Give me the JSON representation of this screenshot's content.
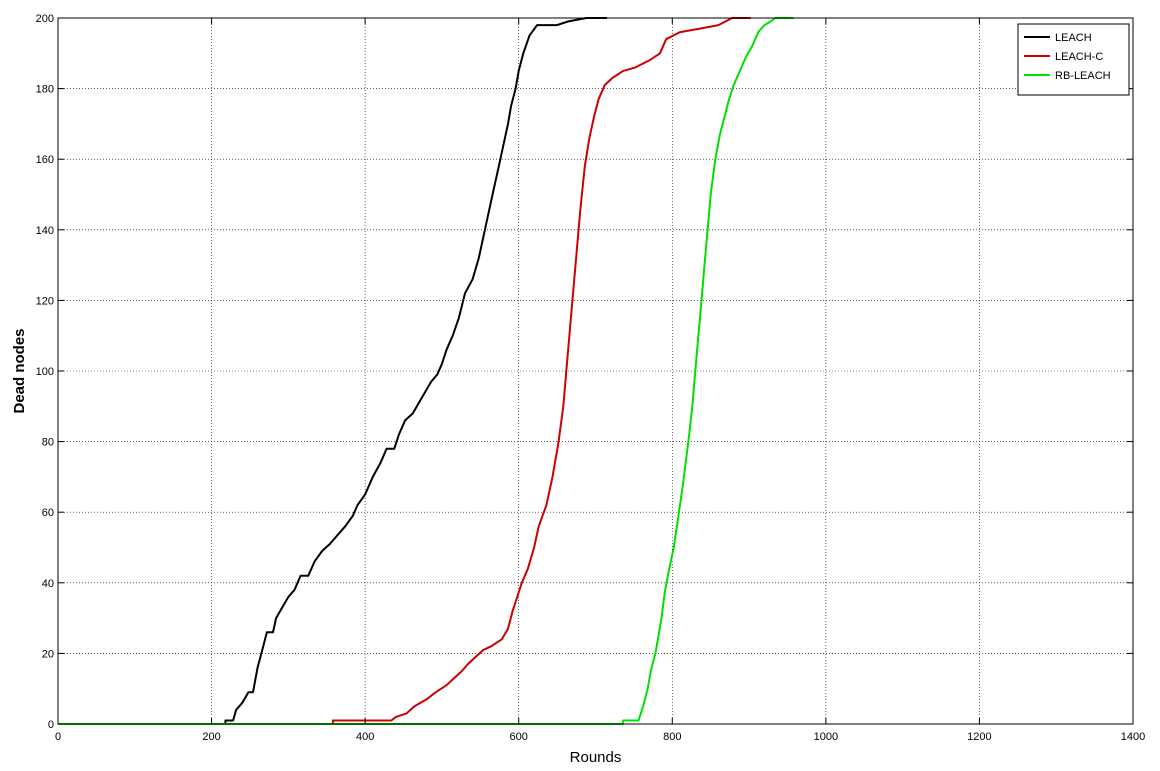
{
  "chart_data": {
    "type": "line",
    "title": "",
    "xlabel": "Rounds",
    "ylabel": "Dead nodes",
    "xlim": [
      0,
      1400
    ],
    "ylim": [
      0,
      200
    ],
    "xticks": [
      0,
      200,
      400,
      600,
      800,
      1000,
      1200,
      1400
    ],
    "yticks": [
      0,
      20,
      40,
      60,
      80,
      100,
      120,
      140,
      160,
      180,
      200
    ],
    "grid": true,
    "legend_position": "top-right",
    "series": [
      {
        "name": "LEACH",
        "color": "#000000",
        "points": [
          [
            0,
            0
          ],
          [
            218,
            0
          ],
          [
            218,
            1
          ],
          [
            228,
            1
          ],
          [
            232,
            4
          ],
          [
            240,
            6
          ],
          [
            248,
            9
          ],
          [
            254,
            9
          ],
          [
            260,
            16
          ],
          [
            266,
            21
          ],
          [
            272,
            26
          ],
          [
            280,
            26
          ],
          [
            284,
            30
          ],
          [
            292,
            33
          ],
          [
            300,
            36
          ],
          [
            308,
            38
          ],
          [
            316,
            42
          ],
          [
            326,
            42
          ],
          [
            334,
            46
          ],
          [
            344,
            49
          ],
          [
            354,
            51
          ],
          [
            362,
            53
          ],
          [
            374,
            56
          ],
          [
            384,
            59
          ],
          [
            390,
            62
          ],
          [
            400,
            65
          ],
          [
            410,
            70
          ],
          [
            420,
            74
          ],
          [
            428,
            78
          ],
          [
            438,
            78
          ],
          [
            444,
            82
          ],
          [
            452,
            86
          ],
          [
            462,
            88
          ],
          [
            470,
            91
          ],
          [
            478,
            94
          ],
          [
            486,
            97
          ],
          [
            494,
            99
          ],
          [
            500,
            102
          ],
          [
            506,
            106
          ],
          [
            514,
            110
          ],
          [
            522,
            115
          ],
          [
            530,
            122
          ],
          [
            540,
            126
          ],
          [
            548,
            132
          ],
          [
            556,
            140
          ],
          [
            562,
            146
          ],
          [
            568,
            152
          ],
          [
            574,
            158
          ],
          [
            580,
            164
          ],
          [
            586,
            170
          ],
          [
            590,
            175
          ],
          [
            596,
            180
          ],
          [
            600,
            185
          ],
          [
            606,
            190
          ],
          [
            614,
            195
          ],
          [
            624,
            198
          ],
          [
            650,
            198
          ],
          [
            664,
            199
          ],
          [
            688,
            200
          ],
          [
            715,
            200
          ]
        ]
      },
      {
        "name": "LEACH-C",
        "color": "#cc0000",
        "points": [
          [
            0,
            0
          ],
          [
            358,
            0
          ],
          [
            358,
            1
          ],
          [
            434,
            1
          ],
          [
            440,
            2
          ],
          [
            454,
            3
          ],
          [
            464,
            5
          ],
          [
            480,
            7
          ],
          [
            492,
            9
          ],
          [
            506,
            11
          ],
          [
            516,
            13
          ],
          [
            526,
            15
          ],
          [
            534,
            17
          ],
          [
            544,
            19
          ],
          [
            554,
            21
          ],
          [
            564,
            22
          ],
          [
            578,
            24
          ],
          [
            586,
            27
          ],
          [
            592,
            32
          ],
          [
            598,
            36
          ],
          [
            604,
            40
          ],
          [
            612,
            44
          ],
          [
            620,
            50
          ],
          [
            626,
            56
          ],
          [
            636,
            62
          ],
          [
            644,
            70
          ],
          [
            652,
            80
          ],
          [
            658,
            90
          ],
          [
            662,
            100
          ],
          [
            668,
            115
          ],
          [
            674,
            130
          ],
          [
            680,
            145
          ],
          [
            686,
            158
          ],
          [
            692,
            166
          ],
          [
            698,
            172
          ],
          [
            704,
            177
          ],
          [
            712,
            181
          ],
          [
            722,
            183
          ],
          [
            736,
            185
          ],
          [
            752,
            186
          ],
          [
            770,
            188
          ],
          [
            784,
            190
          ],
          [
            792,
            194
          ],
          [
            810,
            196
          ],
          [
            836,
            197
          ],
          [
            860,
            198
          ],
          [
            878,
            200
          ],
          [
            902,
            200
          ]
        ]
      },
      {
        "name": "RB-LEACH",
        "color": "#00e000",
        "points": [
          [
            0,
            0
          ],
          [
            736,
            0
          ],
          [
            736,
            1
          ],
          [
            756,
            1
          ],
          [
            762,
            5
          ],
          [
            768,
            10
          ],
          [
            772,
            15
          ],
          [
            778,
            20
          ],
          [
            782,
            25
          ],
          [
            786,
            30
          ],
          [
            790,
            37
          ],
          [
            796,
            44
          ],
          [
            802,
            50
          ],
          [
            806,
            56
          ],
          [
            810,
            62
          ],
          [
            814,
            68
          ],
          [
            818,
            75
          ],
          [
            822,
            82
          ],
          [
            826,
            90
          ],
          [
            830,
            100
          ],
          [
            834,
            110
          ],
          [
            838,
            120
          ],
          [
            842,
            130
          ],
          [
            846,
            140
          ],
          [
            850,
            150
          ],
          [
            856,
            160
          ],
          [
            862,
            167
          ],
          [
            868,
            172
          ],
          [
            874,
            177
          ],
          [
            880,
            181
          ],
          [
            888,
            185
          ],
          [
            896,
            189
          ],
          [
            904,
            192
          ],
          [
            912,
            196
          ],
          [
            920,
            198
          ],
          [
            928,
            199
          ],
          [
            934,
            200
          ],
          [
            958,
            200
          ]
        ]
      }
    ]
  }
}
